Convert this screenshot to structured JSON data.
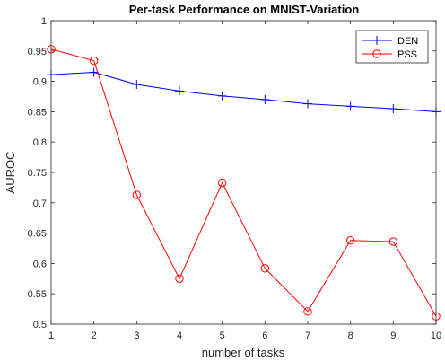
{
  "chart_data": {
    "type": "line",
    "title": "Per-task Performance on MNIST-Variation",
    "xlabel": "number of tasks",
    "ylabel": "AUROC",
    "x": [
      1,
      2,
      3,
      4,
      5,
      6,
      7,
      8,
      9,
      10
    ],
    "xticks": [
      "1",
      "2",
      "3",
      "4",
      "5",
      "6",
      "7",
      "8",
      "9",
      "10"
    ],
    "yticks": [
      "0.5",
      "0.55",
      "0.6",
      "0.65",
      "0.7",
      "0.75",
      "0.8",
      "0.85",
      "0.9",
      "0.95",
      "1"
    ],
    "xlim": [
      1,
      10
    ],
    "ylim": [
      0.5,
      1.0
    ],
    "grid": false,
    "legend_position": "top-right",
    "series": [
      {
        "name": "DEN",
        "color": "#0000ff",
        "marker": "plus",
        "values": [
          0.911,
          0.915,
          0.895,
          0.884,
          0.876,
          0.87,
          0.863,
          0.859,
          0.855,
          0.85
        ]
      },
      {
        "name": "PSS",
        "color": "#ff0000",
        "marker": "circle",
        "values": [
          0.953,
          0.934,
          0.713,
          0.575,
          0.733,
          0.592,
          0.521,
          0.638,
          0.636,
          0.513
        ]
      }
    ]
  }
}
